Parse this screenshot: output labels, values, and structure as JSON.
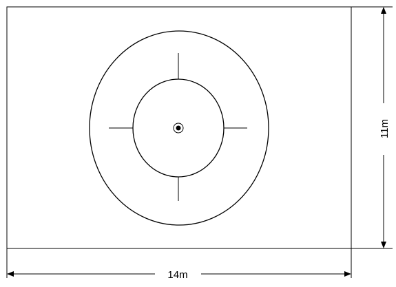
{
  "diagram": {
    "dimensions": {
      "width_label": "14m",
      "height_label": "11m"
    }
  }
}
